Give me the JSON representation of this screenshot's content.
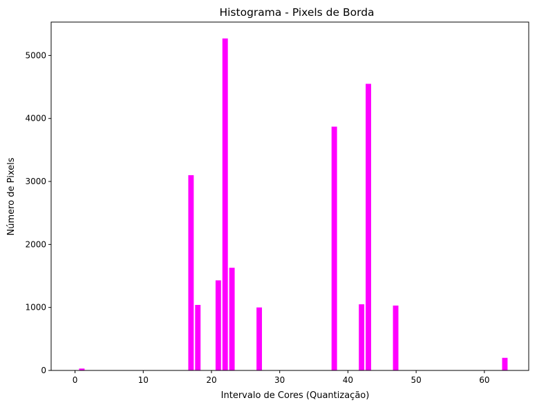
{
  "chart_data": {
    "type": "bar",
    "title": "Histograma - Pixels de Borda",
    "xlabel": "Intervalo de Cores (Quantização)",
    "ylabel": "Número de Pixels",
    "xlim": [
      -3.5,
      66.5
    ],
    "ylim": [
      0,
      5530
    ],
    "xticks": [
      0,
      10,
      20,
      30,
      40,
      50,
      60
    ],
    "yticks": [
      0,
      1000,
      2000,
      3000,
      4000,
      5000
    ],
    "grid": false,
    "bar_color": "#ff00ff",
    "bar_width": 0.8,
    "x": [
      1,
      17,
      18,
      21,
      22,
      23,
      27,
      38,
      42,
      43,
      47,
      63
    ],
    "values": [
      30,
      3100,
      1040,
      1430,
      5270,
      1630,
      1000,
      3870,
      1050,
      4550,
      1030,
      200
    ]
  }
}
